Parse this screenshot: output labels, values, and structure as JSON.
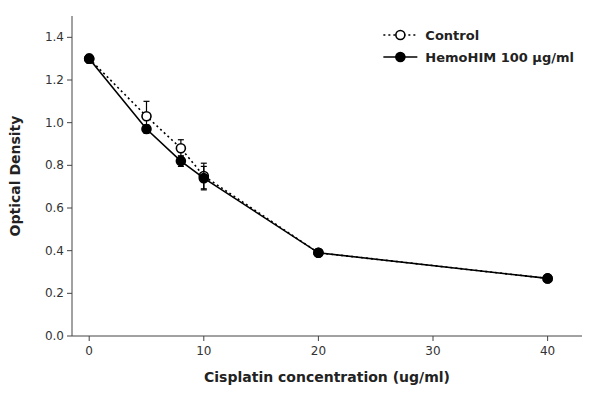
{
  "chart_data": {
    "type": "line",
    "x_label": "Cisplatin concentration (ug/ml)",
    "y_label": "Optical Density",
    "x": [
      0,
      5,
      8,
      10,
      20,
      40
    ],
    "series": [
      {
        "name": "Control",
        "color": "#000000",
        "marker": "circle-open",
        "line_style": "dotted",
        "values": [
          1.3,
          1.03,
          0.88,
          0.75,
          0.39,
          0.27
        ],
        "errors": [
          0.02,
          0.07,
          0.04,
          0.06,
          0.015,
          0.012
        ]
      },
      {
        "name": "HemoHIM 100 μg/ml",
        "color": "#000000",
        "marker": "circle",
        "line_style": "solid",
        "values": [
          1.3,
          0.97,
          0.82,
          0.74,
          0.39,
          0.27
        ],
        "errors": [
          0.015,
          0.02,
          0.025,
          0.055,
          0.015,
          0.012
        ]
      }
    ],
    "xlim": [
      -1.5,
      43
    ],
    "ylim": [
      0.0,
      1.5
    ],
    "xticks": [
      0,
      10,
      20,
      30,
      40
    ],
    "yticks": [
      {
        "value": 0.0,
        "label": "0.0"
      },
      0.2,
      0.4,
      0.6,
      0.8,
      {
        "value": 1.0,
        "label": "1.0"
      },
      1.2,
      1.4
    ],
    "grid": false,
    "legend": "upper-right"
  }
}
